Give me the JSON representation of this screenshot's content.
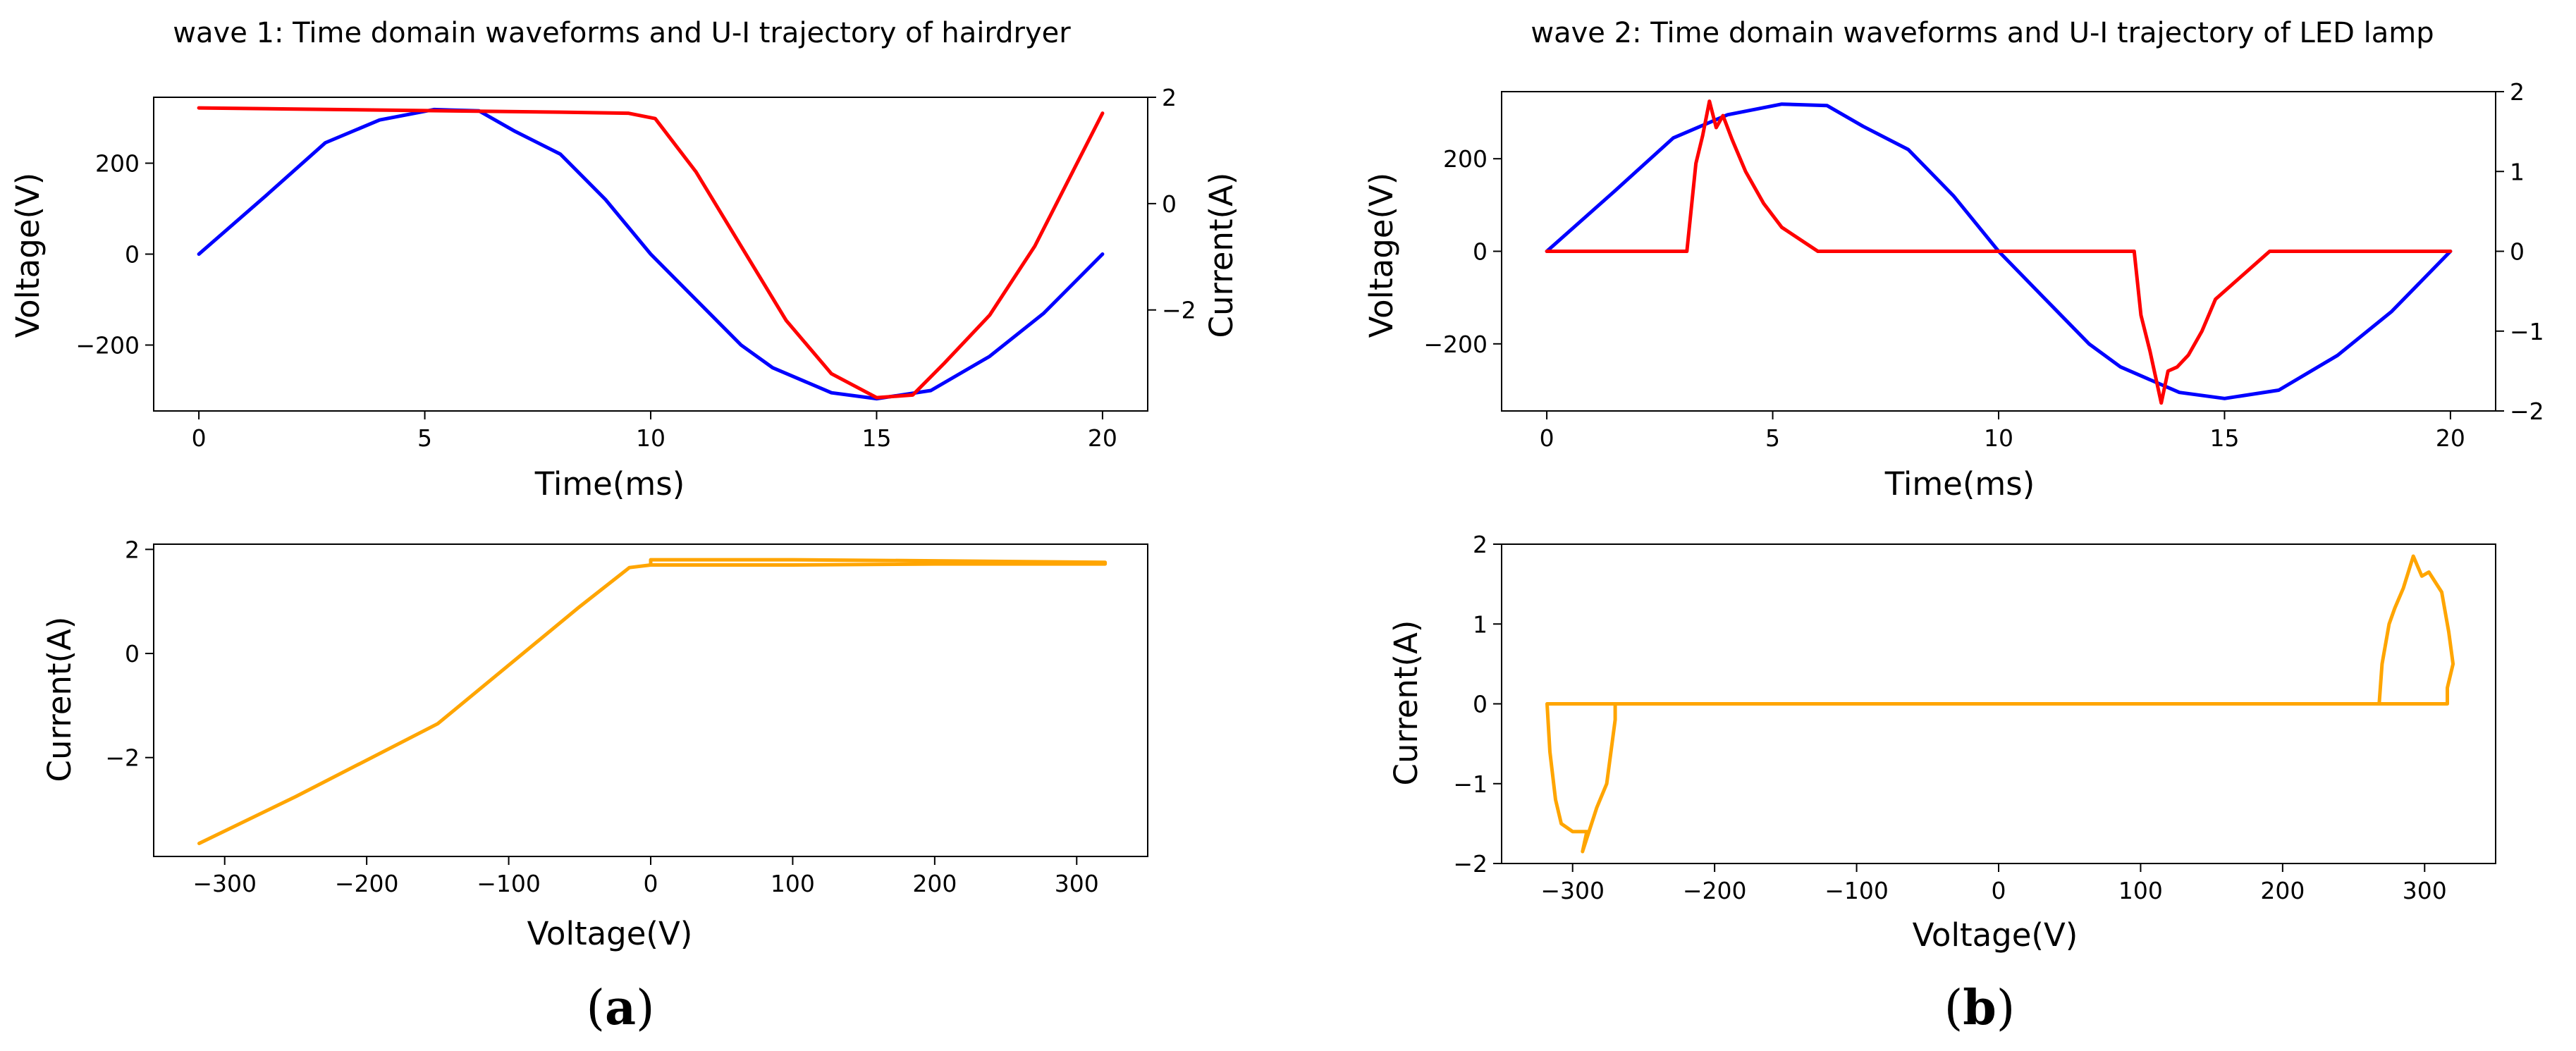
{
  "captions": {
    "a": "a",
    "b": "b"
  },
  "chart_data": [
    {
      "id": "p1",
      "type": "line",
      "title": "wave 1: Time domain waveforms and U-I trajectory of hairdryer",
      "xlabel": "Time(ms)",
      "ylabel": "Voltage(V)",
      "y2label": "Current(A)",
      "xlim": [
        -1,
        21
      ],
      "ylim": [
        -345,
        345
      ],
      "y2lim": [
        -3.9,
        2.0
      ],
      "xticks": [
        0,
        5,
        10,
        15,
        20
      ],
      "yticks": [
        -200,
        0,
        200
      ],
      "y2ticks": [
        -2,
        0,
        2
      ],
      "series": [
        {
          "name": "Voltage",
          "axis": "left",
          "color": "#0000ff",
          "x": [
            0,
            1.5,
            2.8,
            4,
            5.2,
            6.2,
            7,
            8,
            9,
            10,
            11,
            12,
            12.7,
            14,
            15,
            16.2,
            17.5,
            18.7,
            20
          ],
          "y": [
            0,
            130,
            245,
            295,
            318,
            315,
            270,
            220,
            120,
            0,
            -100,
            -200,
            -250,
            -305,
            -318,
            -300,
            -225,
            -130,
            0
          ]
        },
        {
          "name": "Current",
          "axis": "right",
          "color": "#ff0000",
          "x": [
            0,
            2,
            4,
            6,
            8,
            9.5,
            10.1,
            11,
            12,
            13,
            14,
            15,
            15.8,
            16.5,
            17.5,
            18.5,
            20
          ],
          "y": [
            1.8,
            1.78,
            1.76,
            1.74,
            1.72,
            1.7,
            1.6,
            0.6,
            -0.8,
            -2.2,
            -3.2,
            -3.65,
            -3.6,
            -3.0,
            -2.1,
            -0.8,
            1.7
          ]
        }
      ]
    },
    {
      "id": "p2",
      "type": "line",
      "title": "wave 2: Time domain waveforms and U-I trajectory of LED lamp",
      "xlabel": "Time(ms)",
      "ylabel": "Voltage(V)",
      "y2label": "",
      "xlim": [
        -1,
        21
      ],
      "ylim": [
        -345,
        345
      ],
      "y2lim": [
        -2.0,
        2.0
      ],
      "xticks": [
        0,
        5,
        10,
        15,
        20
      ],
      "yticks": [
        -200,
        0,
        200
      ],
      "y2ticks": [
        -2,
        -1,
        0,
        1,
        2
      ],
      "series": [
        {
          "name": "Voltage",
          "axis": "left",
          "color": "#0000ff",
          "x": [
            0,
            1.5,
            2.8,
            4,
            5.2,
            6.2,
            7,
            8,
            9,
            10,
            11,
            12,
            12.7,
            14,
            15,
            16.2,
            17.5,
            18.7,
            20
          ],
          "y": [
            0,
            130,
            245,
            295,
            318,
            315,
            270,
            220,
            120,
            0,
            -100,
            -200,
            -250,
            -305,
            -318,
            -300,
            -225,
            -130,
            0
          ]
        },
        {
          "name": "Current",
          "axis": "right",
          "color": "#ff0000",
          "x": [
            0,
            3.1,
            3.3,
            3.45,
            3.6,
            3.75,
            3.9,
            4.1,
            4.4,
            4.8,
            5.2,
            6.0,
            8,
            10,
            13.0,
            13.15,
            13.35,
            13.6,
            13.75,
            13.95,
            14.2,
            14.5,
            14.8,
            16.0,
            18,
            20
          ],
          "y": [
            0,
            0,
            1.1,
            1.45,
            1.88,
            1.55,
            1.7,
            1.4,
            1.0,
            0.6,
            0.3,
            0,
            0,
            0,
            0,
            -0.8,
            -1.25,
            -1.9,
            -1.5,
            -1.45,
            -1.3,
            -1.0,
            -0.6,
            0,
            0,
            0
          ]
        }
      ]
    },
    {
      "id": "p3",
      "type": "line",
      "title": "",
      "xlabel": "Voltage(V)",
      "ylabel": "Current(A)",
      "xlim": [
        -350,
        350
      ],
      "ylim": [
        -3.9,
        2.1
      ],
      "xticks": [
        -300,
        -200,
        -100,
        0,
        100,
        200,
        300
      ],
      "yticks": [
        -2,
        0,
        2
      ],
      "series": [
        {
          "name": "U-I trajectory",
          "color": "#ffa500",
          "x": [
            -318,
            -250,
            -150,
            -50,
            -15,
            0,
            0,
            100,
            200,
            320,
            320,
            200,
            100,
            0,
            -15
          ],
          "y": [
            -3.65,
            -2.75,
            -1.35,
            0.9,
            1.65,
            1.7,
            1.8,
            1.8,
            1.78,
            1.75,
            1.72,
            1.72,
            1.7,
            1.7,
            1.65
          ]
        }
      ]
    },
    {
      "id": "p4",
      "type": "line",
      "title": "",
      "xlabel": "Voltage(V)",
      "ylabel": "Current(A)",
      "xlim": [
        -350,
        350
      ],
      "ylim": [
        -2.0,
        2.0
      ],
      "xticks": [
        -300,
        -200,
        -100,
        0,
        100,
        200,
        300
      ],
      "yticks": [
        -2,
        -1,
        0,
        1,
        2
      ],
      "series": [
        {
          "name": "U-I trajectory",
          "color": "#ffa500",
          "x": [
            -270,
            -318,
            -316,
            -312,
            -308,
            -300,
            -290,
            -293,
            -283,
            -276,
            -270,
            -270,
            0,
            268,
            270,
            275,
            279,
            285,
            292,
            298,
            303,
            312,
            317,
            320,
            316,
            316,
            0,
            -270
          ],
          "y": [
            0,
            0,
            -0.6,
            -1.2,
            -1.5,
            -1.6,
            -1.6,
            -1.85,
            -1.3,
            -1.0,
            -0.2,
            0,
            0,
            0,
            0.5,
            1.0,
            1.2,
            1.45,
            1.85,
            1.6,
            1.65,
            1.4,
            0.9,
            0.5,
            0.2,
            0,
            0,
            0
          ]
        }
      ]
    }
  ]
}
